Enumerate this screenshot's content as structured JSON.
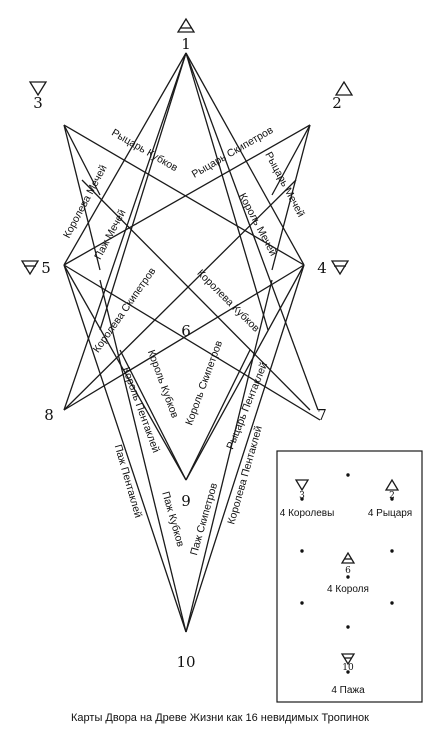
{
  "nodes": {
    "n1": "1",
    "n2": "2",
    "n3": "3",
    "n4": "4",
    "n5": "5",
    "n6": "6",
    "n7": "7",
    "n8": "8",
    "n9": "9",
    "n10": "10"
  },
  "paths": {
    "knight_cups": "Рыцарь Кубков",
    "knight_wands": "Рыцарь Скипетров",
    "queen_swords": "Королева Мечей",
    "knight_swords": "Рыцарь Мечей",
    "page_swords": "Паж Мечей",
    "king_swords": "Король Мечей",
    "queen_wands": "Королева Скипетров",
    "queen_cups": "Королева Кубков",
    "king_cups": "Король Кубков",
    "king_wands": "Король Скипетров",
    "king_pentacles": "Король Пентаклей",
    "knight_pentacles": "Рыцарь Пентаклей",
    "page_pentacles": "Паж Пентаклей",
    "queen_pentacles": "Королева Пентаклей",
    "page_cups": "Паж Кубков",
    "page_wands": "Паж Скипетров"
  },
  "inset": {
    "n3": "3",
    "n2": "2",
    "n6": "6",
    "n10": "10",
    "queens": "4 Королевы",
    "knights": "4 Рыцаря",
    "king": "4 Короля",
    "pages": "4 Пажа"
  },
  "caption": "Карты Двора на Древе Жизни как 16 невидимых Тропинок"
}
